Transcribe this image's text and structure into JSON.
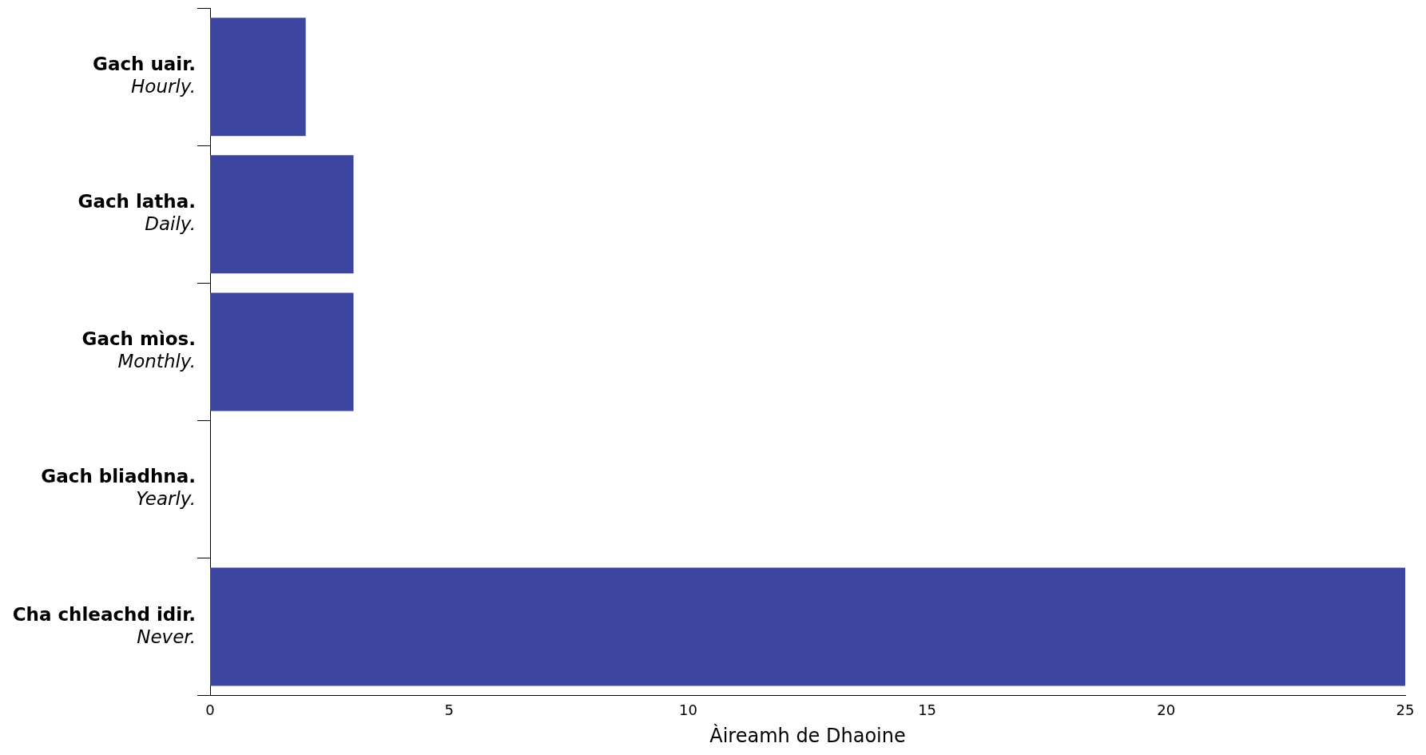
{
  "chart_data": {
    "type": "bar",
    "orientation": "horizontal",
    "xlabel": "Àireamh de Dhaoine",
    "categories": [
      "Gach uair.\nHourly.",
      "Gach latha.\nDaily.",
      "Gach mìos.\nMonthly.",
      "Gach bliadhna.\nYearly.",
      "Cha chleachd idir.\nNever."
    ],
    "values": [
      2,
      3,
      3,
      0,
      25
    ],
    "color": "#3c46a0",
    "xlim": [
      0,
      25
    ],
    "xticks": [
      0,
      5,
      10,
      15,
      20,
      25
    ],
    "grid": false,
    "legend": false
  }
}
